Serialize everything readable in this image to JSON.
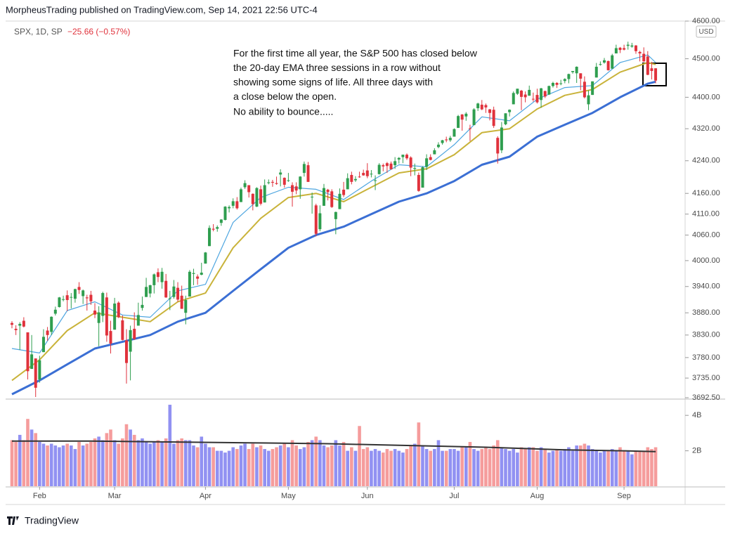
{
  "header": "MorpheusTrading published on TradingView.com, Sep 14, 2021 22:56 UTC-4",
  "footer": "TradingView",
  "chart_data": {
    "type": "candlestick",
    "log_scale": true,
    "symbol_info": "SPX, 1D, SP",
    "change": "−25.66 (−0.57%)",
    "currency": "USD",
    "annotation": [
      "For the first time all year, the S&P 500 has closed below",
      "the 20-day EMA three sessions in a row without",
      "showing some signs of life.  All three days with",
      "a close below the open.",
      "No ability to bounce....."
    ],
    "xticks": [
      {
        "value": 7,
        "label": "Feb"
      },
      {
        "value": 26,
        "label": "Mar"
      },
      {
        "value": 49,
        "label": "Apr"
      },
      {
        "value": 70,
        "label": "May"
      },
      {
        "value": 90,
        "label": "Jun"
      },
      {
        "value": 112,
        "label": "Jul"
      },
      {
        "value": 133,
        "label": "Aug"
      },
      {
        "value": 155,
        "label": "Sep"
      }
    ],
    "ylim": [
      3692.5,
      4600
    ],
    "yticks": [
      {
        "value": 4600,
        "label": "4600.00"
      },
      {
        "value": 4500,
        "label": "4500.00"
      },
      {
        "value": 4400,
        "label": "4400.00"
      },
      {
        "value": 4320,
        "label": "4320.00"
      },
      {
        "value": 4240,
        "label": "4240.00"
      },
      {
        "value": 4160,
        "label": "4160.00"
      },
      {
        "value": 4110,
        "label": "4110.00"
      },
      {
        "value": 4060,
        "label": "4060.00"
      },
      {
        "value": 4000,
        "label": "4000.00"
      },
      {
        "value": 3940,
        "label": "3940.00"
      },
      {
        "value": 3880,
        "label": "3880.00"
      },
      {
        "value": 3830,
        "label": "3830.00"
      },
      {
        "value": 3780,
        "label": "3780.00"
      },
      {
        "value": 3735,
        "label": "3735.00"
      },
      {
        "value": 3692.5,
        "label": "3692.50"
      }
    ],
    "up_color": "#2f9e4f",
    "down_color": "#e0323c",
    "candles": {
      "open": [
        3857,
        3844,
        3851,
        3862,
        3836,
        3755,
        3778,
        3732,
        3792,
        3840,
        3837,
        3878,
        3893,
        3910,
        3920,
        3916,
        3912,
        3939,
        3918,
        3915,
        3921,
        3885,
        3857,
        3873,
        3915,
        3839,
        3842,
        3903,
        3863,
        3818,
        3793,
        3844,
        3851,
        3891,
        3916,
        3924,
        3943,
        3973,
        3950,
        3953,
        3913,
        3916,
        3937,
        3919,
        3880,
        3917,
        3969,
        3963,
        3967,
        3993,
        4034,
        4075,
        4075,
        4089,
        4096,
        4124,
        4130,
        4141,
        4139,
        4175,
        4180,
        4159,
        4128,
        4170,
        4138,
        4185,
        4188,
        4185,
        4206,
        4198,
        4191,
        4180,
        4177,
        4170,
        4210,
        4229,
        4151,
        4131,
        4074,
        4130,
        4169,
        4165,
        4098,
        4122,
        4169,
        4170,
        4205,
        4192,
        4201,
        4210,
        4216,
        4207,
        4191,
        4207,
        4229,
        4234,
        4233,
        4229,
        4243,
        4249,
        4255,
        4248,
        4220,
        4205,
        4174,
        4225,
        4249,
        4256,
        4274,
        4284,
        4293,
        4291,
        4300,
        4322,
        4356,
        4351,
        4321,
        4329,
        4372,
        4381,
        4380,
        4369,
        4368,
        4297,
        4266,
        4331,
        4362,
        4382,
        4409,
        4417,
        4407,
        4404,
        4396,
        4406,
        4393,
        4416,
        4407,
        4429,
        4437,
        4436,
        4442,
        4447,
        4465,
        4462,
        4462,
        4440,
        4382,
        4406,
        4451,
        4484,
        4490,
        4494,
        4474,
        4514,
        4529,
        4528,
        4534,
        4532,
        4535,
        4518,
        4513,
        4506,
        4475,
        4475
      ],
      "high": [
        3861,
        3852,
        3859,
        3870,
        3836,
        3830,
        3778,
        3784,
        3843,
        3848,
        3872,
        3894,
        3916,
        3919,
        3931,
        3925,
        3935,
        3950,
        3933,
        3921,
        3930,
        3902,
        3895,
        3928,
        3926,
        3862,
        3914,
        3906,
        3874,
        3843,
        3851,
        3881,
        3903,
        3917,
        3960,
        3944,
        3970,
        3982,
        3983,
        3969,
        3930,
        3955,
        3950,
        3942,
        3919,
        3978,
        3981,
        3968,
        3995,
        4020,
        4083,
        4086,
        4083,
        4098,
        4129,
        4131,
        4148,
        4151,
        4174,
        4192,
        4180,
        4160,
        4175,
        4179,
        4194,
        4194,
        4193,
        4201,
        4219,
        4199,
        4210,
        4187,
        4187,
        4202,
        4238,
        4237,
        4162,
        4135,
        4131,
        4183,
        4171,
        4170,
        4116,
        4172,
        4188,
        4209,
        4213,
        4202,
        4213,
        4218,
        4234,
        4217,
        4204,
        4234,
        4233,
        4237,
        4238,
        4249,
        4249,
        4255,
        4258,
        4251,
        4233,
        4211,
        4226,
        4256,
        4256,
        4271,
        4286,
        4292,
        4300,
        4302,
        4321,
        4355,
        4357,
        4362,
        4330,
        4372,
        4386,
        4393,
        4384,
        4370,
        4376,
        4301,
        4337,
        4359,
        4369,
        4415,
        4422,
        4419,
        4415,
        4430,
        4412,
        4422,
        4424,
        4417,
        4430,
        4440,
        4439,
        4445,
        4449,
        4461,
        4468,
        4480,
        4462,
        4454,
        4418,
        4441,
        4489,
        4493,
        4502,
        4495,
        4513,
        4537,
        4531,
        4537,
        4545,
        4542,
        4536,
        4521,
        4530,
        4520,
        4492,
        4475
      ],
      "low": [
        3845,
        3830,
        3797,
        3847,
        3732,
        3755,
        3694,
        3725,
        3792,
        3817,
        3830,
        3874,
        3892,
        3906,
        3884,
        3890,
        3903,
        3923,
        3900,
        3885,
        3898,
        3868,
        3805,
        3859,
        3815,
        3789,
        3842,
        3868,
        3818,
        3723,
        3730,
        3819,
        3851,
        3885,
        3916,
        3915,
        3924,
        3950,
        3935,
        3914,
        3886,
        3912,
        3905,
        3889,
        3854,
        3917,
        3943,
        3944,
        3966,
        3993,
        4034,
        4069,
        4068,
        4082,
        4095,
        4114,
        4124,
        4121,
        4139,
        4171,
        4150,
        4119,
        4127,
        4131,
        4138,
        4182,
        4176,
        4181,
        4177,
        4174,
        4188,
        4128,
        4158,
        4147,
        4201,
        4188,
        4111,
        4057,
        4069,
        4130,
        4143,
        4125,
        4062,
        4122,
        4151,
        4170,
        4182,
        4188,
        4198,
        4203,
        4197,
        4199,
        4168,
        4206,
        4214,
        4210,
        4218,
        4220,
        4233,
        4234,
        4242,
        4202,
        4204,
        4164,
        4174,
        4217,
        4241,
        4256,
        4271,
        4280,
        4286,
        4287,
        4300,
        4322,
        4315,
        4340,
        4289,
        4329,
        4365,
        4367,
        4360,
        4341,
        4322,
        4233,
        4259,
        4329,
        4351,
        4382,
        4406,
        4367,
        4387,
        4404,
        4389,
        4384,
        4373,
        4398,
        4406,
        4425,
        4424,
        4431,
        4436,
        4436,
        4461,
        4437,
        4418,
        4397,
        4367,
        4406,
        4451,
        4482,
        4487,
        4469,
        4474,
        4514,
        4515,
        4522,
        4524,
        4529,
        4513,
        4493,
        4492,
        4457,
        4446,
        4436
      ],
      "close": [
        3853,
        3841,
        3855,
        3849,
        3750,
        3787,
        3714,
        3774,
        3826,
        3830,
        3871,
        3887,
        3915,
        3911,
        3909,
        3916,
        3934,
        3932,
        3931,
        3913,
        3906,
        3876,
        3881,
        3925,
        3829,
        3811,
        3901,
        3870,
        3819,
        3768,
        3841,
        3821,
        3875,
        3898,
        3939,
        3943,
        3968,
        3962,
        3974,
        3915,
        3913,
        3940,
        3910,
        3889,
        3909,
        3974,
        3971,
        3958,
        3972,
        4019,
        4077,
        4073,
        4079,
        4097,
        4128,
        4127,
        4141,
        4124,
        4170,
        4185,
        4163,
        4134,
        4173,
        4135,
        4180,
        4187,
        4186,
        4183,
        4211,
        4181,
        4192,
        4164,
        4167,
        4201,
        4232,
        4188,
        4152,
        4063,
        4112,
        4173,
        4163,
        4127,
        4115,
        4159,
        4156,
        4197,
        4188,
        4195,
        4200,
        4204,
        4202,
        4208,
        4192,
        4230,
        4226,
        4227,
        4219,
        4239,
        4247,
        4255,
        4246,
        4223,
        4222,
        4166,
        4224,
        4246,
        4242,
        4266,
        4280,
        4291,
        4291,
        4297,
        4319,
        4352,
        4343,
        4358,
        4320,
        4369,
        4384,
        4369,
        4374,
        4360,
        4327,
        4258,
        4323,
        4359,
        4368,
        4411,
        4422,
        4401,
        4400,
        4419,
        4395,
        4387,
        4423,
        4402,
        4429,
        4437,
        4432,
        4436,
        4447,
        4460,
        4468,
        4479,
        4448,
        4400,
        4405,
        4441,
        4479,
        4486,
        4496,
        4470,
        4509,
        4528,
        4523,
        4524,
        4537,
        4535,
        4520,
        4514,
        4493,
        4458,
        4468,
        4443
      ]
    },
    "series": [
      {
        "color": "#4ea6e0",
        "width": 1.2,
        "x": [
          0,
          7,
          14,
          21,
          28,
          35,
          42,
          49,
          56,
          63,
          70,
          77,
          84,
          91,
          98,
          105,
          112,
          119,
          126,
          133,
          140,
          147,
          154,
          161,
          163
        ],
        "values": [
          3800,
          3790,
          3885,
          3905,
          3875,
          3870,
          3930,
          3945,
          4090,
          4150,
          4175,
          4170,
          4145,
          4190,
          4230,
          4225,
          4280,
          4350,
          4340,
          4395,
          4425,
          4430,
          4490,
          4510,
          4490
        ]
      },
      {
        "color": "#c9b33a",
        "width": 2,
        "x": [
          0,
          7,
          14,
          21,
          28,
          35,
          42,
          49,
          56,
          63,
          70,
          77,
          84,
          91,
          98,
          105,
          112,
          119,
          126,
          133,
          140,
          147,
          154,
          161,
          163
        ],
        "values": [
          3730,
          3775,
          3840,
          3880,
          3870,
          3860,
          3905,
          3925,
          4030,
          4100,
          4150,
          4160,
          4140,
          4175,
          4210,
          4220,
          4255,
          4310,
          4320,
          4370,
          4405,
          4420,
          4465,
          4490,
          4485
        ]
      },
      {
        "color": "#3b6fd4",
        "width": 3,
        "x": [
          0,
          7,
          14,
          21,
          28,
          35,
          42,
          49,
          56,
          63,
          70,
          77,
          84,
          91,
          98,
          105,
          112,
          119,
          126,
          133,
          140,
          147,
          154,
          161,
          163
        ],
        "values": [
          3700,
          3730,
          3765,
          3800,
          3815,
          3830,
          3860,
          3880,
          3930,
          3980,
          4030,
          4060,
          4080,
          4110,
          4140,
          4160,
          4190,
          4230,
          4250,
          4300,
          4330,
          4360,
          4400,
          4435,
          4440
        ]
      }
    ],
    "volume": {
      "ylim": [
        0,
        4.8
      ],
      "yticks": [
        {
          "value": 4,
          "label": "4B"
        },
        {
          "value": 2,
          "label": "2B"
        }
      ],
      "up_color": "#9191f2",
      "down_color": "#f59c9c",
      "values": [
        2.6,
        2.5,
        2.9,
        2.6,
        3.8,
        3.2,
        3.0,
        2.5,
        2.4,
        2.3,
        2.4,
        2.3,
        2.2,
        2.3,
        2.4,
        2.3,
        2.1,
        2.5,
        2.3,
        2.4,
        2.5,
        2.7,
        2.8,
        2.6,
        3.0,
        3.2,
        2.6,
        2.4,
        2.7,
        3.5,
        3.2,
        2.9,
        2.6,
        2.7,
        2.5,
        2.4,
        2.5,
        2.6,
        2.5,
        2.7,
        4.6,
        2.4,
        2.6,
        2.7,
        2.6,
        2.6,
        2.3,
        2.2,
        2.8,
        2.4,
        2.2,
        2.2,
        2.0,
        2.0,
        1.9,
        2.0,
        2.2,
        2.1,
        2.3,
        2.4,
        2.1,
        2.4,
        2.2,
        2.3,
        2.1,
        2.0,
        2.1,
        2.2,
        2.3,
        2.4,
        2.2,
        2.6,
        2.3,
        2.1,
        2.2,
        2.5,
        2.6,
        2.8,
        2.6,
        2.3,
        2.2,
        2.3,
        2.6,
        2.3,
        2.5,
        2.0,
        2.2,
        2.0,
        3.4,
        2.1,
        2.2,
        2.0,
        2.1,
        2.0,
        1.9,
        2.1,
        2.0,
        2.1,
        2.0,
        1.9,
        2.1,
        2.3,
        2.4,
        3.6,
        2.3,
        2.1,
        2.0,
        2.1,
        2.6,
        2.0,
        2.0,
        2.1,
        2.1,
        2.0,
        2.2,
        2.2,
        2.5,
        2.1,
        2.0,
        2.1,
        2.2,
        2.1,
        2.3,
        2.6,
        2.2,
        2.1,
        2.0,
        2.1,
        1.9,
        2.2,
        2.1,
        2.2,
        2.2,
        2.0,
        2.2,
        2.1,
        1.9,
        2.0,
        2.1,
        2.0,
        2.1,
        2.2,
        2.0,
        2.3,
        2.3,
        2.4,
        2.3,
        2.1,
        2.0,
        1.9,
        2.0,
        2.0,
        2.1,
        2.0,
        2.2,
        2.0,
        2.0,
        1.8,
        2.0,
        2.0,
        2.0,
        2.2,
        2.1,
        2.2
      ],
      "average": {
        "color": "#333333",
        "x": [
          0,
          20,
          40,
          60,
          80,
          100,
          120,
          140,
          155,
          163
        ],
        "values": [
          2.55,
          2.55,
          2.5,
          2.45,
          2.4,
          2.3,
          2.2,
          2.05,
          2.0,
          1.95
        ]
      }
    }
  }
}
